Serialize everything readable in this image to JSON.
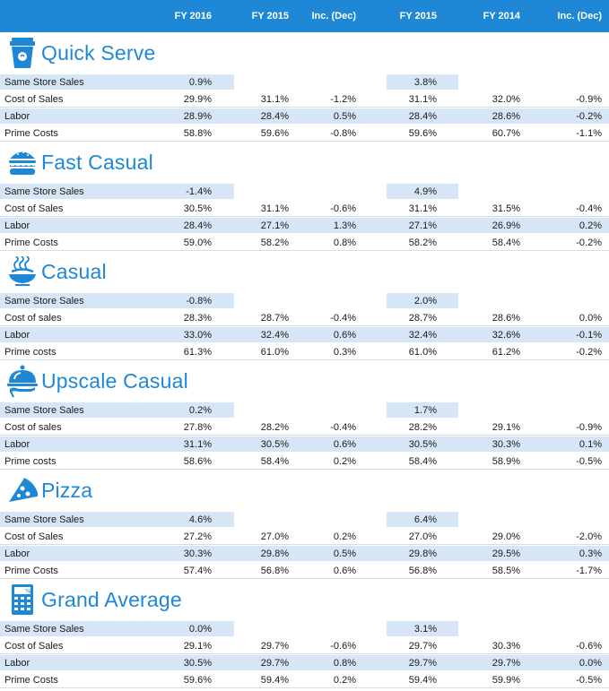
{
  "header": {
    "col1": "FY 2016",
    "col2": "FY 2015",
    "col3": "Inc. (Dec)",
    "col4": "FY 2015",
    "col5": "FY 2014",
    "col6": "Inc. (Dec)"
  },
  "colors": {
    "accent": "#1e88d6",
    "highlight": "#d7e6f7"
  },
  "sections": [
    {
      "title": "Quick Serve",
      "icon": "coffee-cup-icon",
      "rows": [
        {
          "label": "Same Store Sales",
          "values": [
            "0.9%",
            "",
            "",
            "3.8%",
            "",
            ""
          ]
        },
        {
          "label": "Cost of Sales",
          "values": [
            "29.9%",
            "31.1%",
            "-1.2%",
            "31.1%",
            "32.0%",
            "-0.9%"
          ]
        },
        {
          "label": "Labor",
          "values": [
            "28.9%",
            "28.4%",
            "0.5%",
            "28.4%",
            "28.6%",
            "-0.2%"
          ]
        },
        {
          "label": "Prime Costs",
          "values": [
            "58.8%",
            "59.6%",
            "-0.8%",
            "59.6%",
            "60.7%",
            "-1.1%"
          ]
        }
      ]
    },
    {
      "title": "Fast Casual",
      "icon": "burger-icon",
      "rows": [
        {
          "label": "Same Store Sales",
          "values": [
            "-1.4%",
            "",
            "",
            "4.9%",
            "",
            ""
          ]
        },
        {
          "label": "Cost of Sales",
          "values": [
            "30.5%",
            "31.1%",
            "-0.6%",
            "31.1%",
            "31.5%",
            "-0.4%"
          ]
        },
        {
          "label": "Labor",
          "values": [
            "28.4%",
            "27.1%",
            "1.3%",
            "27.1%",
            "26.9%",
            "0.2%"
          ]
        },
        {
          "label": "Prime Costs",
          "values": [
            "59.0%",
            "58.2%",
            "0.8%",
            "58.2%",
            "58.4%",
            "-0.2%"
          ]
        }
      ]
    },
    {
      "title": "Casual",
      "icon": "pasta-bowl-icon",
      "rows": [
        {
          "label": "Same Store Sales",
          "values": [
            "-0.8%",
            "",
            "",
            "2.0%",
            "",
            ""
          ]
        },
        {
          "label": "Cost of sales",
          "values": [
            "28.3%",
            "28.7%",
            "-0.4%",
            "28.7%",
            "28.6%",
            "0.0%"
          ]
        },
        {
          "label": "Labor",
          "values": [
            "33.0%",
            "32.4%",
            "0.6%",
            "32.4%",
            "32.6%",
            "-0.1%"
          ]
        },
        {
          "label": "Prime costs",
          "values": [
            "61.3%",
            "61.0%",
            "0.3%",
            "61.0%",
            "61.2%",
            "-0.2%"
          ]
        }
      ]
    },
    {
      "title": "Upscale Casual",
      "icon": "serving-cloche-icon",
      "rows": [
        {
          "label": "Same Store Sales",
          "values": [
            "0.2%",
            "",
            "",
            "1.7%",
            "",
            ""
          ]
        },
        {
          "label": "Cost of sales",
          "values": [
            "27.8%",
            "28.2%",
            "-0.4%",
            "28.2%",
            "29.1%",
            "-0.9%"
          ]
        },
        {
          "label": "Labor",
          "values": [
            "31.1%",
            "30.5%",
            "0.6%",
            "30.5%",
            "30.3%",
            "0.1%"
          ]
        },
        {
          "label": "Prime costs",
          "values": [
            "58.6%",
            "58.4%",
            "0.2%",
            "58.4%",
            "58.9%",
            "-0.5%"
          ]
        }
      ]
    },
    {
      "title": "Pizza",
      "icon": "pizza-slice-icon",
      "rows": [
        {
          "label": "Same Store Sales",
          "values": [
            "4.6%",
            "",
            "",
            "6.4%",
            "",
            ""
          ]
        },
        {
          "label": "Cost of Sales",
          "values": [
            "27.2%",
            "27.0%",
            "0.2%",
            "27.0%",
            "29.0%",
            "-2.0%"
          ]
        },
        {
          "label": "Labor",
          "values": [
            "30.3%",
            "29.8%",
            "0.5%",
            "29.8%",
            "29.5%",
            "0.3%"
          ]
        },
        {
          "label": "Prime Costs",
          "values": [
            "57.4%",
            "56.8%",
            "0.6%",
            "56.8%",
            "58.5%",
            "-1.7%"
          ]
        }
      ]
    },
    {
      "title": "Grand Average",
      "icon": "calculator-icon",
      "rows": [
        {
          "label": "Same Store Sales",
          "values": [
            "0.0%",
            "",
            "",
            "3.1%",
            "",
            ""
          ]
        },
        {
          "label": "Cost of Sales",
          "values": [
            "29.1%",
            "29.7%",
            "-0.6%",
            "29.7%",
            "30.3%",
            "-0.6%"
          ]
        },
        {
          "label": "Labor",
          "values": [
            "30.5%",
            "29.7%",
            "0.8%",
            "29.7%",
            "29.7%",
            "0.0%"
          ]
        },
        {
          "label": "Prime Costs",
          "values": [
            "59.6%",
            "59.4%",
            "0.2%",
            "59.4%",
            "59.9%",
            "-0.5%"
          ]
        }
      ]
    }
  ]
}
